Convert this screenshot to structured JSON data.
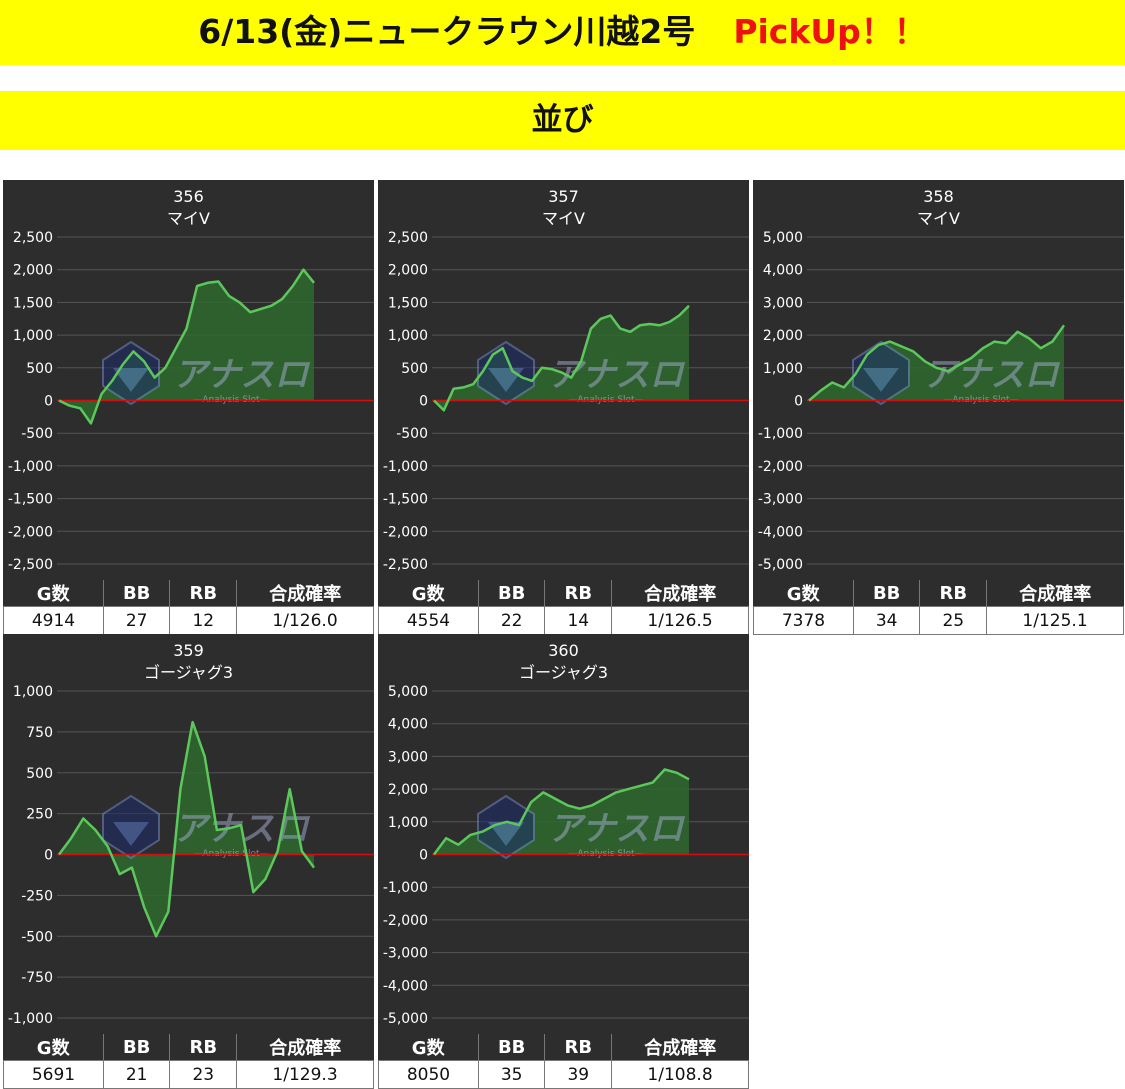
{
  "header": {
    "title": "6/13(金)ニュークラウン川越2号",
    "pickup": "PickUp！！",
    "subtitle": "並び"
  },
  "colors": {
    "banner": "#ffff00",
    "pickup": "#ee1111",
    "panel_bg": "#2d2d2d",
    "line": "#5cc85c",
    "fill": "#2f6a2f",
    "zero_line": "#d01010",
    "grid": "#555555"
  },
  "stats_headers": [
    "G数",
    "BB",
    "RB",
    "合成確率"
  ],
  "watermark": {
    "brand": "アナスロ",
    "tagline": "—Analysis Slot—",
    "icon": "analysis-slot-logo-icon"
  },
  "chart_data": [
    {
      "type": "area",
      "number": "356",
      "machine": "マイV",
      "ylim": [
        -2500,
        2500
      ],
      "ticks": [
        2500,
        2000,
        1500,
        1000,
        500,
        0,
        -500,
        -1000,
        -1500,
        -2000,
        -2500
      ],
      "tick_labels": [
        "2,500",
        "2,000",
        "1,500",
        "1,000",
        "500",
        "0",
        "-500",
        "-1,000",
        "-1,500",
        "-2,000",
        "-2,500"
      ],
      "series": [
        {
          "values": [
            0,
            -80,
            -120,
            -350,
            100,
            300,
            550,
            750,
            600,
            350,
            500,
            800,
            1100,
            1750,
            1800,
            1820,
            1600,
            1500,
            1350,
            1400,
            1450,
            1550,
            1750,
            2000,
            1800
          ]
        }
      ],
      "stats": {
        "games": "4914",
        "bb": "27",
        "rb": "12",
        "prob": "1/126.0"
      }
    },
    {
      "type": "area",
      "number": "357",
      "machine": "マイV",
      "ylim": [
        -2500,
        2500
      ],
      "ticks": [
        2500,
        2000,
        1500,
        1000,
        500,
        0,
        -500,
        -1000,
        -1500,
        -2000,
        -2500
      ],
      "tick_labels": [
        "2,500",
        "2,000",
        "1,500",
        "1,000",
        "500",
        "0",
        "-500",
        "-1,000",
        "-1,500",
        "-2,000",
        "-2,500"
      ],
      "series": [
        {
          "values": [
            0,
            -150,
            180,
            200,
            250,
            450,
            700,
            800,
            450,
            350,
            300,
            500,
            480,
            430,
            350,
            600,
            1100,
            1250,
            1300,
            1100,
            1050,
            1150,
            1170,
            1150,
            1200,
            1300,
            1450
          ]
        }
      ],
      "stats": {
        "games": "4554",
        "bb": "22",
        "rb": "14",
        "prob": "1/126.5"
      }
    },
    {
      "type": "area",
      "number": "358",
      "machine": "マイV",
      "ylim": [
        -5000,
        5000
      ],
      "ticks": [
        5000,
        4000,
        3000,
        2000,
        1000,
        0,
        -1000,
        -2000,
        -3000,
        -4000,
        -5000
      ],
      "tick_labels": [
        "5,000",
        "4,000",
        "3,000",
        "2,000",
        "1,000",
        "0",
        "-1,000",
        "-2,000",
        "-3,000",
        "-4,000",
        "-5,000"
      ],
      "series": [
        {
          "values": [
            0,
            300,
            550,
            400,
            800,
            1400,
            1700,
            1800,
            1650,
            1500,
            1200,
            1000,
            900,
            1100,
            1300,
            1600,
            1800,
            1750,
            2100,
            1900,
            1600,
            1800,
            2300
          ]
        }
      ],
      "stats": {
        "games": "7378",
        "bb": "34",
        "rb": "25",
        "prob": "1/125.1"
      }
    },
    {
      "type": "area",
      "number": "359",
      "machine": "ゴージャグ3",
      "ylim": [
        -1000,
        1000
      ],
      "ticks": [
        1000,
        750,
        500,
        250,
        0,
        -250,
        -500,
        -750,
        -1000
      ],
      "tick_labels": [
        "1,000",
        "750",
        "500",
        "250",
        "0",
        "-250",
        "-500",
        "-750",
        "-1,000"
      ],
      "series": [
        {
          "values": [
            0,
            100,
            220,
            150,
            50,
            -120,
            -80,
            -320,
            -500,
            -350,
            400,
            810,
            600,
            150,
            160,
            180,
            -230,
            -150,
            20,
            400,
            20,
            -80
          ]
        }
      ],
      "stats": {
        "games": "5691",
        "bb": "21",
        "rb": "23",
        "prob": "1/129.3"
      }
    },
    {
      "type": "area",
      "number": "360",
      "machine": "ゴージャグ3",
      "ylim": [
        -5000,
        5000
      ],
      "ticks": [
        5000,
        4000,
        3000,
        2000,
        1000,
        0,
        -1000,
        -2000,
        -3000,
        -4000,
        -5000
      ],
      "tick_labels": [
        "5,000",
        "4,000",
        "3,000",
        "2,000",
        "1,000",
        "0",
        "-1,000",
        "-2,000",
        "-3,000",
        "-4,000",
        "-5,000"
      ],
      "series": [
        {
          "values": [
            0,
            500,
            300,
            600,
            700,
            900,
            1000,
            900,
            1600,
            1900,
            1700,
            1500,
            1400,
            1500,
            1700,
            1900,
            2000,
            2100,
            2200,
            2600,
            2500,
            2300
          ]
        }
      ],
      "stats": {
        "games": "8050",
        "bb": "35",
        "rb": "39",
        "prob": "1/108.8"
      }
    }
  ]
}
